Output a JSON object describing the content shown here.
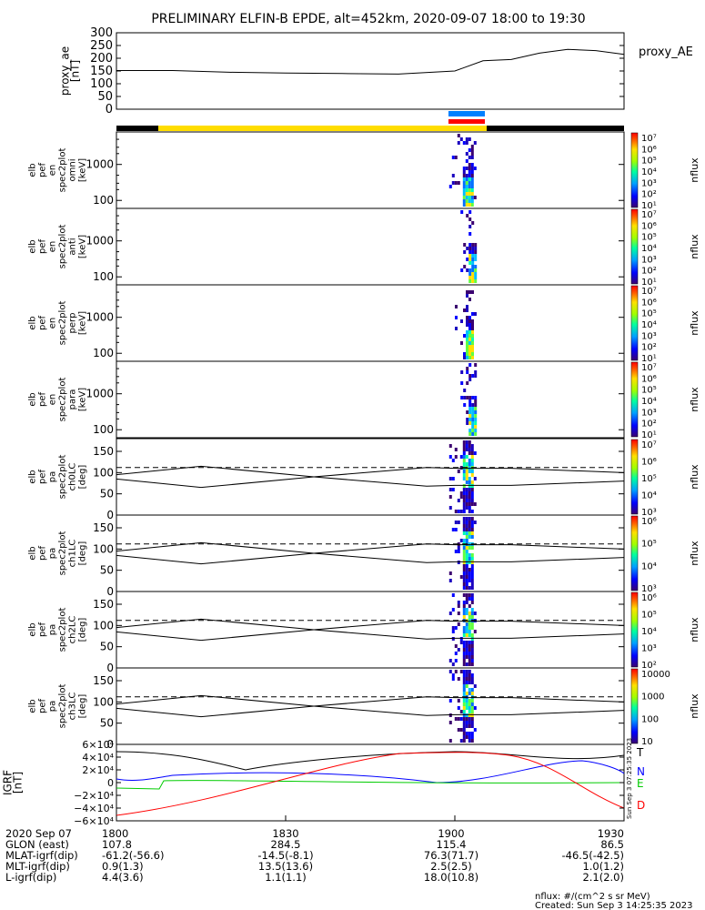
{
  "title": "PRELIMINARY ELFIN-B EPDE, alt=452km, 2020-09-07 18:00 to 19:30",
  "panels": {
    "ae": {
      "ylabel_lines": [
        "proxy_ae",
        "[nT]"
      ],
      "ticks": [
        "0",
        "50",
        "100",
        "150",
        "200",
        "250",
        "300"
      ],
      "legend": "proxy_AE"
    },
    "spec": [
      {
        "ylabel_lines": [
          "elb",
          "pef",
          "en",
          "spec2plot",
          "omni",
          "[keV]"
        ],
        "ticks": [
          "100",
          "1000"
        ]
      },
      {
        "ylabel_lines": [
          "elb",
          "pef",
          "en",
          "spec2plot",
          "anti",
          "[keV]"
        ],
        "ticks": [
          "100",
          "1000"
        ]
      },
      {
        "ylabel_lines": [
          "elb",
          "pef",
          "en",
          "spec2plot",
          "perp",
          "[keV]"
        ],
        "ticks": [
          "100",
          "1000"
        ]
      },
      {
        "ylabel_lines": [
          "elb",
          "pef",
          "en",
          "spec2plot",
          "para",
          "[keV]"
        ],
        "ticks": [
          "100",
          "1000"
        ]
      }
    ],
    "pa": [
      {
        "ylabel_lines": [
          "elb",
          "pef",
          "pa",
          "spec2plot",
          "ch0LC",
          "[deg]"
        ],
        "ticks": [
          "0",
          "50",
          "100",
          "150"
        ]
      },
      {
        "ylabel_lines": [
          "elb",
          "pef",
          "pa",
          "spec2plot",
          "ch1LC",
          "[deg]"
        ],
        "ticks": [
          "0",
          "50",
          "100",
          "150"
        ]
      },
      {
        "ylabel_lines": [
          "elb",
          "pef",
          "pa",
          "spec2plot",
          "ch2LC",
          "[deg]"
        ],
        "ticks": [
          "0",
          "50",
          "100",
          "150"
        ]
      },
      {
        "ylabel_lines": [
          "elb",
          "pef",
          "pa",
          "spec2plot",
          "ch3LC",
          "[deg]"
        ],
        "ticks": [
          "0",
          "50",
          "100",
          "150"
        ]
      }
    ],
    "igrf": {
      "ylabel_lines": [
        "IGRF",
        "[nT]"
      ],
      "ticks": [
        "−6×10⁴",
        "−4×10⁴",
        "−2×10⁴",
        "0",
        "2×10⁴",
        "4×10⁴",
        "6×10⁴"
      ],
      "legend": [
        "T",
        "N",
        "E",
        "D"
      ]
    }
  },
  "colorbars": [
    {
      "label": "nflux",
      "ticks": [
        "10¹",
        "10²",
        "10³",
        "10⁴",
        "10⁵",
        "10⁶",
        "10⁷"
      ]
    },
    {
      "label": "nflux",
      "ticks": [
        "10¹",
        "10²",
        "10³",
        "10⁴",
        "10⁵",
        "10⁶",
        "10⁷"
      ]
    },
    {
      "label": "nflux",
      "ticks": [
        "10¹",
        "10²",
        "10³",
        "10⁴",
        "10⁵",
        "10⁶",
        "10⁷"
      ]
    },
    {
      "label": "nflux",
      "ticks": [
        "10¹",
        "10²",
        "10³",
        "10⁴",
        "10⁵",
        "10⁶",
        "10⁷"
      ]
    },
    {
      "label": "nflux",
      "ticks": [
        "10³",
        "10⁴",
        "10⁵",
        "10⁶",
        "10⁷"
      ]
    },
    {
      "label": "nflux",
      "ticks": [
        "10³",
        "10⁴",
        "10⁵",
        "10⁶"
      ]
    },
    {
      "label": "nflux",
      "ticks": [
        "10²",
        "10³",
        "10⁴",
        "10⁵",
        "10⁶"
      ]
    },
    {
      "label": "nflux",
      "ticks": [
        "10",
        "100",
        "1000",
        "10000"
      ]
    }
  ],
  "bottom_table": {
    "rows": [
      {
        "label": "2020 Sep 07",
        "values": [
          "1800",
          "1830",
          "1900",
          "1930"
        ]
      },
      {
        "label": "GLON (east)",
        "values": [
          "107.8",
          "284.5",
          "115.4",
          "86.5"
        ]
      },
      {
        "label": "MLAT-igrf(dip)",
        "values": [
          "-61.2(-56.6)",
          "-14.5(-8.1)",
          "76.3(71.7)",
          "-46.5(-42.5)"
        ]
      },
      {
        "label": "MLT-igrf(dip)",
        "values": [
          "0.9(1.3)",
          "13.5(13.6)",
          "2.5(2.5)",
          "1.0(1.2)"
        ]
      },
      {
        "label": "L-igrf(dip)",
        "values": [
          "4.4(3.6)",
          "1.1(1.1)",
          "18.0(10.8)",
          "2.1(2.0)"
        ]
      }
    ]
  },
  "footer": {
    "units": "nflux: #/(cm^2 s sr MeV)",
    "created": "Created: Sun Sep  3 14:25:35 2023",
    "vertical_stamp": "Sun Sep 3 07:25:35 2023"
  },
  "colors": {
    "igrf_T": "#000000",
    "igrf_N": "#0000ff",
    "igrf_E": "#00cc00",
    "igrf_D": "#ff0000",
    "bar_sunlit": "#ffdd00",
    "bar_shadow": "#000000",
    "bar_science1": "#0080ff",
    "bar_science2": "#ff0000"
  },
  "chart_data": [
    {
      "type": "line",
      "name": "proxy_AE",
      "ylabel": "proxy_ae [nT]",
      "x_minutes": [
        0,
        10,
        20,
        30,
        40,
        50,
        60,
        65,
        70,
        75,
        80,
        85,
        90
      ],
      "y": [
        152,
        152,
        145,
        142,
        140,
        138,
        150,
        190,
        195,
        220,
        235,
        230,
        215
      ],
      "ylim": [
        0,
        300
      ]
    },
    {
      "type": "heatmap",
      "panel": "omni [keV]",
      "ylim": [
        60,
        8000
      ],
      "log_y": true,
      "active_x_minutes": [
        59,
        64
      ],
      "zscale": "log",
      "zlim": [
        10,
        10000000.0
      ]
    },
    {
      "type": "heatmap",
      "panel": "anti [keV]",
      "ylim": [
        60,
        8000
      ],
      "log_y": true,
      "active_x_minutes": [
        61,
        64
      ],
      "zscale": "log",
      "zlim": [
        10,
        10000000.0
      ]
    },
    {
      "type": "heatmap",
      "panel": "perp [keV]",
      "ylim": [
        60,
        8000
      ],
      "log_y": true,
      "active_x_minutes": [
        60,
        64
      ],
      "zscale": "log",
      "zlim": [
        10,
        10000000.0
      ]
    },
    {
      "type": "heatmap",
      "panel": "para [keV]",
      "ylim": [
        60,
        8000
      ],
      "log_y": true,
      "active_x_minutes": [
        61,
        64
      ],
      "zscale": "log",
      "zlim": [
        10,
        10000000.0
      ]
    },
    {
      "type": "line",
      "panel": "pitch angle [deg]",
      "ylim": [
        0,
        180
      ],
      "x_minutes": [
        0,
        15,
        35,
        55,
        60,
        70,
        90
      ],
      "loss_cone": [
        95,
        115,
        90,
        68,
        70,
        70,
        80
      ],
      "anti_loss_cone": [
        85,
        65,
        90,
        112,
        110,
        110,
        100
      ],
      "dashed": 112
    }
  ]
}
